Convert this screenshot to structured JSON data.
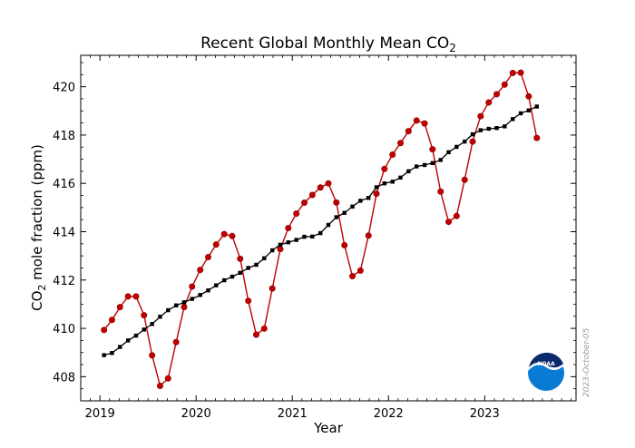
{
  "chart_data": {
    "type": "line",
    "title_main": "Recent Global Monthly Mean CO",
    "title_sub": "2",
    "xlabel": "Year",
    "ylabel_main_a": "CO",
    "ylabel_sub": "2",
    "ylabel_main_b": " mole fraction (ppm)",
    "xlim": [
      2018.8,
      2023.95
    ],
    "ylim": [
      407.0,
      421.3
    ],
    "xticks": [
      2019,
      2020,
      2021,
      2022,
      2023
    ],
    "yticks": [
      408,
      410,
      412,
      414,
      416,
      418,
      420
    ],
    "grid": false,
    "colors": {
      "monthly": "#c00000",
      "trend": "#000000"
    },
    "date_stamp": "2023-October-05",
    "logo_label": "NOAA",
    "series": [
      {
        "key": "monthly",
        "x": [
          2019.042,
          2019.125,
          2019.208,
          2019.292,
          2019.375,
          2019.458,
          2019.542,
          2019.625,
          2019.708,
          2019.792,
          2019.875,
          2019.958,
          2020.042,
          2020.125,
          2020.208,
          2020.292,
          2020.375,
          2020.458,
          2020.542,
          2020.625,
          2020.708,
          2020.792,
          2020.875,
          2020.958,
          2021.042,
          2021.125,
          2021.208,
          2021.292,
          2021.375,
          2021.458,
          2021.542,
          2021.625,
          2021.708,
          2021.792,
          2021.875,
          2021.958,
          2022.042,
          2022.125,
          2022.208,
          2022.292,
          2022.375,
          2022.458,
          2022.542,
          2022.625,
          2022.708,
          2022.792,
          2022.875,
          2022.958,
          2023.042,
          2023.125,
          2023.208,
          2023.292,
          2023.375,
          2023.458,
          2023.542
        ],
        "y": [
          409.93,
          410.35,
          410.88,
          411.32,
          411.32,
          410.54,
          408.88,
          407.62,
          407.93,
          409.43,
          410.88,
          411.73,
          412.42,
          412.95,
          413.47,
          413.9,
          413.82,
          412.88,
          411.14,
          409.74,
          409.99,
          411.65,
          413.28,
          414.15,
          414.75,
          415.2,
          415.52,
          415.83,
          416.0,
          415.21,
          413.44,
          412.16,
          412.39,
          413.84,
          415.57,
          416.6,
          417.19,
          417.67,
          418.16,
          418.6,
          418.48,
          417.41,
          415.66,
          414.41,
          414.65,
          416.15,
          417.73,
          418.78,
          419.35,
          419.69,
          420.09,
          420.57,
          420.58,
          419.6,
          417.88
        ]
      },
      {
        "key": "trend",
        "x": [
          2019.042,
          2019.125,
          2019.208,
          2019.292,
          2019.375,
          2019.458,
          2019.542,
          2019.625,
          2019.708,
          2019.792,
          2019.875,
          2019.958,
          2020.042,
          2020.125,
          2020.208,
          2020.292,
          2020.375,
          2020.458,
          2020.542,
          2020.625,
          2020.708,
          2020.792,
          2020.875,
          2020.958,
          2021.042,
          2021.125,
          2021.208,
          2021.292,
          2021.375,
          2021.458,
          2021.542,
          2021.625,
          2021.708,
          2021.792,
          2021.875,
          2021.958,
          2022.042,
          2022.125,
          2022.208,
          2022.292,
          2022.375,
          2022.458,
          2022.542,
          2022.625,
          2022.708,
          2022.792,
          2022.875,
          2022.958,
          2023.042,
          2023.125,
          2023.208,
          2023.292,
          2023.375,
          2023.458,
          2023.542
        ],
        "y": [
          408.89,
          408.98,
          409.23,
          409.5,
          409.7,
          409.95,
          410.18,
          410.48,
          410.75,
          410.95,
          411.08,
          411.22,
          411.38,
          411.57,
          411.78,
          411.99,
          412.14,
          412.3,
          412.5,
          412.63,
          412.9,
          413.23,
          413.46,
          413.56,
          413.66,
          413.79,
          413.8,
          413.94,
          414.28,
          414.6,
          414.78,
          415.04,
          415.28,
          415.4,
          415.84,
          416.0,
          416.07,
          416.24,
          416.5,
          416.7,
          416.76,
          416.84,
          416.97,
          417.29,
          417.51,
          417.73,
          418.03,
          418.2,
          418.26,
          418.29,
          418.36,
          418.66,
          418.9,
          419.02,
          419.18
        ]
      }
    ]
  }
}
